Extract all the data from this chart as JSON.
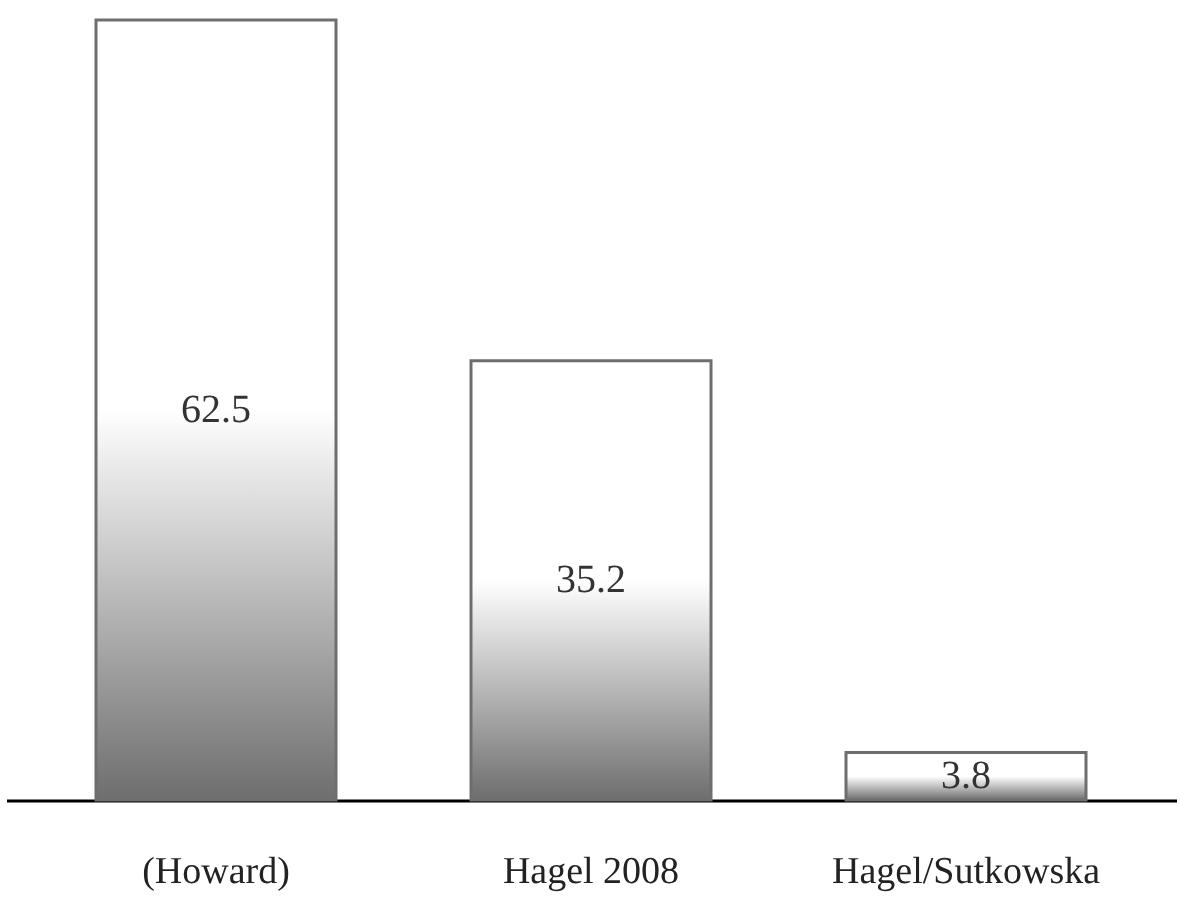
{
  "chart_data": {
    "type": "bar",
    "categories": [
      "(Howard)",
      "Hagel 2008",
      "Hagel/Sutkowska"
    ],
    "values": [
      62.5,
      35.2,
      3.8
    ],
    "color": "#6e6e6e",
    "data_labels": true,
    "grid": false
  }
}
